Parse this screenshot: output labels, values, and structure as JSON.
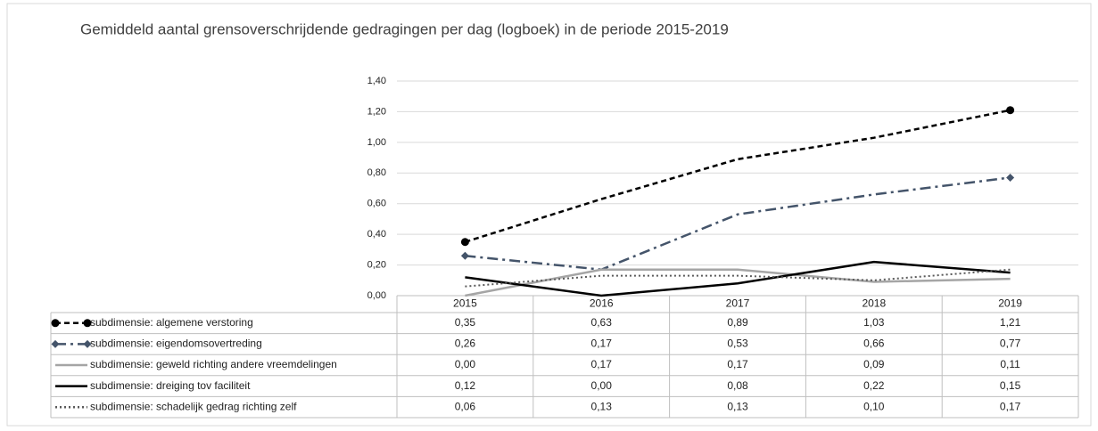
{
  "chart_data": {
    "type": "line",
    "title": "Gemiddeld aantal grensoverschrijdende gedragingen per dag (logboek) in de periode 2015-2019",
    "categories": [
      "2015",
      "2016",
      "2017",
      "2018",
      "2019"
    ],
    "series": [
      {
        "name": "subdimensie: algemene verstoring",
        "color": "#000000",
        "dash": "dashed",
        "marker": "circle",
        "values": [
          0.35,
          0.63,
          0.89,
          1.03,
          1.21
        ],
        "value_labels": [
          "0,35",
          "0,63",
          "0,89",
          "1,03",
          "1,21"
        ]
      },
      {
        "name": "subdimensie: eigendomsovertreding",
        "color": "#44546a",
        "dash": "dashdot",
        "marker": "diamond",
        "values": [
          0.26,
          0.17,
          0.53,
          0.66,
          0.77
        ],
        "value_labels": [
          "0,26",
          "0,17",
          "0,53",
          "0,66",
          "0,77"
        ]
      },
      {
        "name": "subdimensie: geweld richting andere vreemdelingen",
        "color": "#a5a5a5",
        "dash": "solid",
        "values": [
          0.0,
          0.17,
          0.17,
          0.09,
          0.11
        ],
        "value_labels": [
          "0,00",
          "0,17",
          "0,17",
          "0,09",
          "0,11"
        ]
      },
      {
        "name": "subdimensie: dreiging tov faciliteit",
        "color": "#000000",
        "dash": "solid",
        "values": [
          0.12,
          0.0,
          0.08,
          0.22,
          0.15
        ],
        "value_labels": [
          "0,12",
          "0,00",
          "0,08",
          "0,22",
          "0,15"
        ]
      },
      {
        "name": "subdimensie: schadelijk gedrag richting zelf",
        "color": "#595959",
        "dash": "dotted",
        "values": [
          0.06,
          0.13,
          0.13,
          0.1,
          0.17
        ],
        "value_labels": [
          "0,06",
          "0,13",
          "0,13",
          "0,10",
          "0,17"
        ]
      }
    ],
    "ylim": [
      0,
      1.4
    ],
    "yticks": [
      {
        "value": 0,
        "label": "0,00"
      },
      {
        "value": 0.2,
        "label": "0,20"
      },
      {
        "value": 0.4,
        "label": "0,40"
      },
      {
        "value": 0.6,
        "label": "0,60"
      },
      {
        "value": 0.8,
        "label": "0,80"
      },
      {
        "value": 1.0,
        "label": "1,00"
      },
      {
        "value": 1.2,
        "label": "1,20"
      },
      {
        "value": 1.4,
        "label": "1,40"
      }
    ],
    "grid": true
  }
}
